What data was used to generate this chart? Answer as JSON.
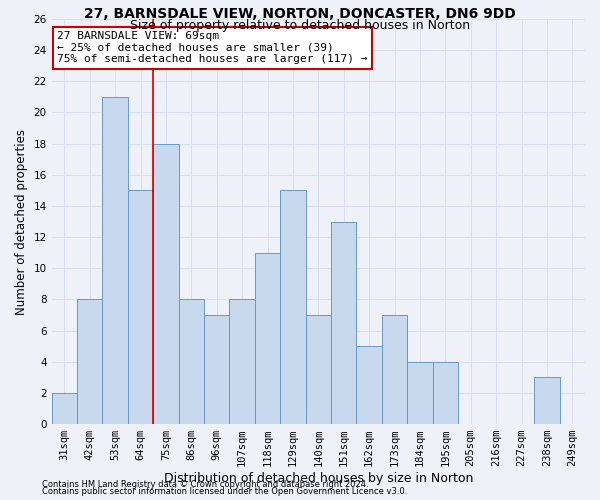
{
  "title1": "27, BARNSDALE VIEW, NORTON, DONCASTER, DN6 9DD",
  "title2": "Size of property relative to detached houses in Norton",
  "xlabel": "Distribution of detached houses by size in Norton",
  "ylabel": "Number of detached properties",
  "categories": [
    "31sqm",
    "42sqm",
    "53sqm",
    "64sqm",
    "75sqm",
    "86sqm",
    "96sqm",
    "107sqm",
    "118sqm",
    "129sqm",
    "140sqm",
    "151sqm",
    "162sqm",
    "173sqm",
    "184sqm",
    "195sqm",
    "205sqm",
    "216sqm",
    "227sqm",
    "238sqm",
    "249sqm"
  ],
  "values": [
    2,
    8,
    21,
    15,
    18,
    8,
    7,
    8,
    11,
    15,
    7,
    13,
    5,
    7,
    4,
    4,
    0,
    0,
    0,
    3,
    0
  ],
  "bar_color": "#c8d9ed",
  "bar_edge_color": "#6699cc",
  "vline_color": "#cc0000",
  "annotation_text": "27 BARNSDALE VIEW: 69sqm\n← 25% of detached houses are smaller (39)\n75% of semi-detached houses are larger (117) →",
  "annotation_box_color": "#ffffff",
  "annotation_box_edge": "#cc0000",
  "ylim": [
    0,
    26
  ],
  "yticks": [
    0,
    2,
    4,
    6,
    8,
    10,
    12,
    14,
    16,
    18,
    20,
    22,
    24,
    26
  ],
  "footer1": "Contains HM Land Registry data © Crown copyright and database right 2024.",
  "footer2": "Contains public sector information licensed under the Open Government Licence v3.0.",
  "background_color": "#eef2f8",
  "grid_color": "#d8e0ee",
  "title1_fontsize": 10,
  "title2_fontsize": 9,
  "tick_fontsize": 7.5,
  "ylabel_fontsize": 8.5,
  "xlabel_fontsize": 9,
  "annotation_fontsize": 8,
  "footer_fontsize": 6
}
